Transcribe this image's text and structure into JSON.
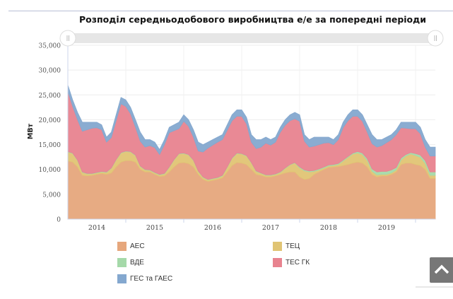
{
  "chart_data": {
    "type": "area",
    "stacked": true,
    "title": "Розподіл середньодобового виробництва е/е за попередні періоди",
    "xlabel": "",
    "ylabel": "МВт",
    "ylim": [
      0,
      35000
    ],
    "yticks": [
      0,
      5000,
      10000,
      15000,
      20000,
      25000,
      30000,
      35000
    ],
    "ytick_labels": [
      "0",
      "5,000",
      "10,000",
      "15,000",
      "20,000",
      "25,000",
      "30,000",
      "35,000"
    ],
    "xtick_labels": [
      "2014",
      "2015",
      "2016",
      "2017",
      "2018",
      "2019"
    ],
    "grid": true,
    "legend_position": "bottom",
    "navigator": true,
    "categories": [
      "2014-01",
      "2014-02",
      "2014-03",
      "2014-04",
      "2014-05",
      "2014-06",
      "2014-07",
      "2014-08",
      "2014-09",
      "2014-10",
      "2014-11",
      "2014-12",
      "2015-01",
      "2015-02",
      "2015-03",
      "2015-04",
      "2015-05",
      "2015-06",
      "2015-07",
      "2015-08",
      "2015-09",
      "2015-10",
      "2015-11",
      "2015-12",
      "2016-01",
      "2016-02",
      "2016-03",
      "2016-04",
      "2016-05",
      "2016-06",
      "2016-07",
      "2016-08",
      "2016-09",
      "2016-10",
      "2016-11",
      "2016-12",
      "2017-01",
      "2017-02",
      "2017-03",
      "2017-04",
      "2017-05",
      "2017-06",
      "2017-07",
      "2017-08",
      "2017-09",
      "2017-10",
      "2017-11",
      "2017-12",
      "2018-01",
      "2018-02",
      "2018-03",
      "2018-04",
      "2018-05",
      "2018-06",
      "2018-07",
      "2018-08",
      "2018-09",
      "2018-10",
      "2018-11",
      "2018-12",
      "2019-01",
      "2019-02",
      "2019-03",
      "2019-04",
      "2019-05",
      "2019-06",
      "2019-07",
      "2019-08",
      "2019-09",
      "2019-10",
      "2019-11",
      "2019-12",
      "2020-01",
      "2020-02",
      "2020-03",
      "2020-04"
    ],
    "series": [
      {
        "name": "АЕС",
        "color": "#e6a77c",
        "values": [
          11700,
          11500,
          10500,
          8800,
          8700,
          8800,
          9000,
          9200,
          9000,
          9300,
          10500,
          11500,
          11800,
          11800,
          11500,
          10000,
          9500,
          9500,
          9000,
          8600,
          8700,
          9500,
          10500,
          11300,
          11400,
          11200,
          10500,
          9000,
          8000,
          7600,
          7800,
          8000,
          8300,
          9500,
          10800,
          11400,
          11300,
          11000,
          10000,
          9000,
          8800,
          8500,
          8500,
          8700,
          9000,
          9300,
          9500,
          9500,
          8500,
          8000,
          8200,
          9000,
          9500,
          10000,
          10400,
          10500,
          10600,
          10800,
          11000,
          11300,
          11500,
          11300,
          10500,
          9000,
          8500,
          8700,
          8700,
          9000,
          9500,
          11000,
          11300,
          11300,
          11000,
          10800,
          10000,
          8200
        ]
      },
      {
        "name": "ТЕЦ",
        "color": "#e0c474",
        "values": [
          1800,
          1700,
          1300,
          600,
          400,
          300,
          300,
          300,
          400,
          900,
          1400,
          1800,
          1800,
          1700,
          1300,
          600,
          400,
          300,
          300,
          300,
          400,
          900,
          1400,
          1800,
          1800,
          1700,
          1300,
          600,
          400,
          300,
          300,
          300,
          400,
          900,
          1400,
          1800,
          1800,
          1700,
          1300,
          600,
          400,
          300,
          300,
          300,
          400,
          900,
          1400,
          1800,
          1800,
          1700,
          1300,
          600,
          400,
          300,
          300,
          300,
          400,
          900,
          1400,
          1800,
          1800,
          1700,
          1300,
          600,
          400,
          300,
          300,
          300,
          400,
          900,
          1400,
          1800,
          1800,
          1600,
          1200,
          600
        ]
      },
      {
        "name": "ВДЕ",
        "color": "#a5d9a9",
        "values": [
          100,
          100,
          100,
          100,
          100,
          100,
          100,
          100,
          100,
          100,
          100,
          100,
          100,
          100,
          100,
          100,
          100,
          100,
          100,
          100,
          100,
          100,
          100,
          100,
          100,
          100,
          100,
          100,
          100,
          100,
          100,
          100,
          100,
          100,
          100,
          100,
          100,
          100,
          100,
          100,
          100,
          100,
          100,
          100,
          100,
          100,
          100,
          100,
          200,
          200,
          200,
          200,
          200,
          200,
          200,
          200,
          200,
          200,
          200,
          200,
          300,
          300,
          400,
          500,
          600,
          600,
          600,
          600,
          500,
          400,
          300,
          300,
          400,
          500,
          600,
          700
        ]
      },
      {
        "name": "ТЕС ГК",
        "color": "#e8838f",
        "values": [
          12100,
          9400,
          8100,
          8200,
          8800,
          9100,
          9000,
          8400,
          6000,
          6100,
          7800,
          9800,
          9000,
          7600,
          5600,
          5000,
          4500,
          4900,
          5000,
          4000,
          5800,
          6900,
          5800,
          5000,
          6400,
          5700,
          4600,
          4000,
          5000,
          6300,
          6700,
          7100,
          7200,
          7400,
          7500,
          7400,
          7500,
          6400,
          4100,
          4500,
          5200,
          6400,
          6000,
          6400,
          8000,
          8600,
          8800,
          8800,
          9200,
          5800,
          4800,
          4900,
          4900,
          4800,
          4500,
          4000,
          4800,
          6500,
          7200,
          7400,
          7100,
          6400,
          5300,
          5100,
          5000,
          5200,
          5800,
          6100,
          6600,
          6100,
          5300,
          4800,
          5000,
          4300,
          2700,
          3200
        ]
      },
      {
        "name": "ГЕС та ГАЕС",
        "color": "#84a8cf",
        "values": [
          1300,
          1300,
          1500,
          1800,
          1500,
          1200,
          1100,
          1000,
          1000,
          1100,
          1200,
          1300,
          1300,
          1300,
          1500,
          1800,
          1500,
          1200,
          1100,
          1000,
          1000,
          1100,
          1200,
          1300,
          1300,
          1300,
          1500,
          1800,
          1500,
          1200,
          1100,
          1000,
          1000,
          1100,
          1200,
          1300,
          1300,
          1300,
          1500,
          1800,
          1500,
          1200,
          1100,
          1000,
          1000,
          1100,
          1200,
          1300,
          1300,
          1300,
          1500,
          1800,
          1500,
          1200,
          1100,
          1000,
          1000,
          1100,
          1200,
          1300,
          1300,
          1300,
          1500,
          1800,
          1500,
          1200,
          1100,
          1000,
          1000,
          1100,
          1200,
          1300,
          1300,
          1300,
          1500,
          1800
        ]
      }
    ]
  },
  "legend": {
    "items": [
      {
        "label": "АЕС",
        "color": "#e6a77c"
      },
      {
        "label": "ТЕЦ",
        "color": "#e0c474"
      },
      {
        "label": "ВДЕ",
        "color": "#a5d9a9"
      },
      {
        "label": "ТЕС ГК",
        "color": "#e8838f"
      },
      {
        "label": "ГЕС та ГАЕС",
        "color": "#84a8cf"
      }
    ]
  },
  "scroll_top": {
    "icon": "chevron-up-icon"
  }
}
